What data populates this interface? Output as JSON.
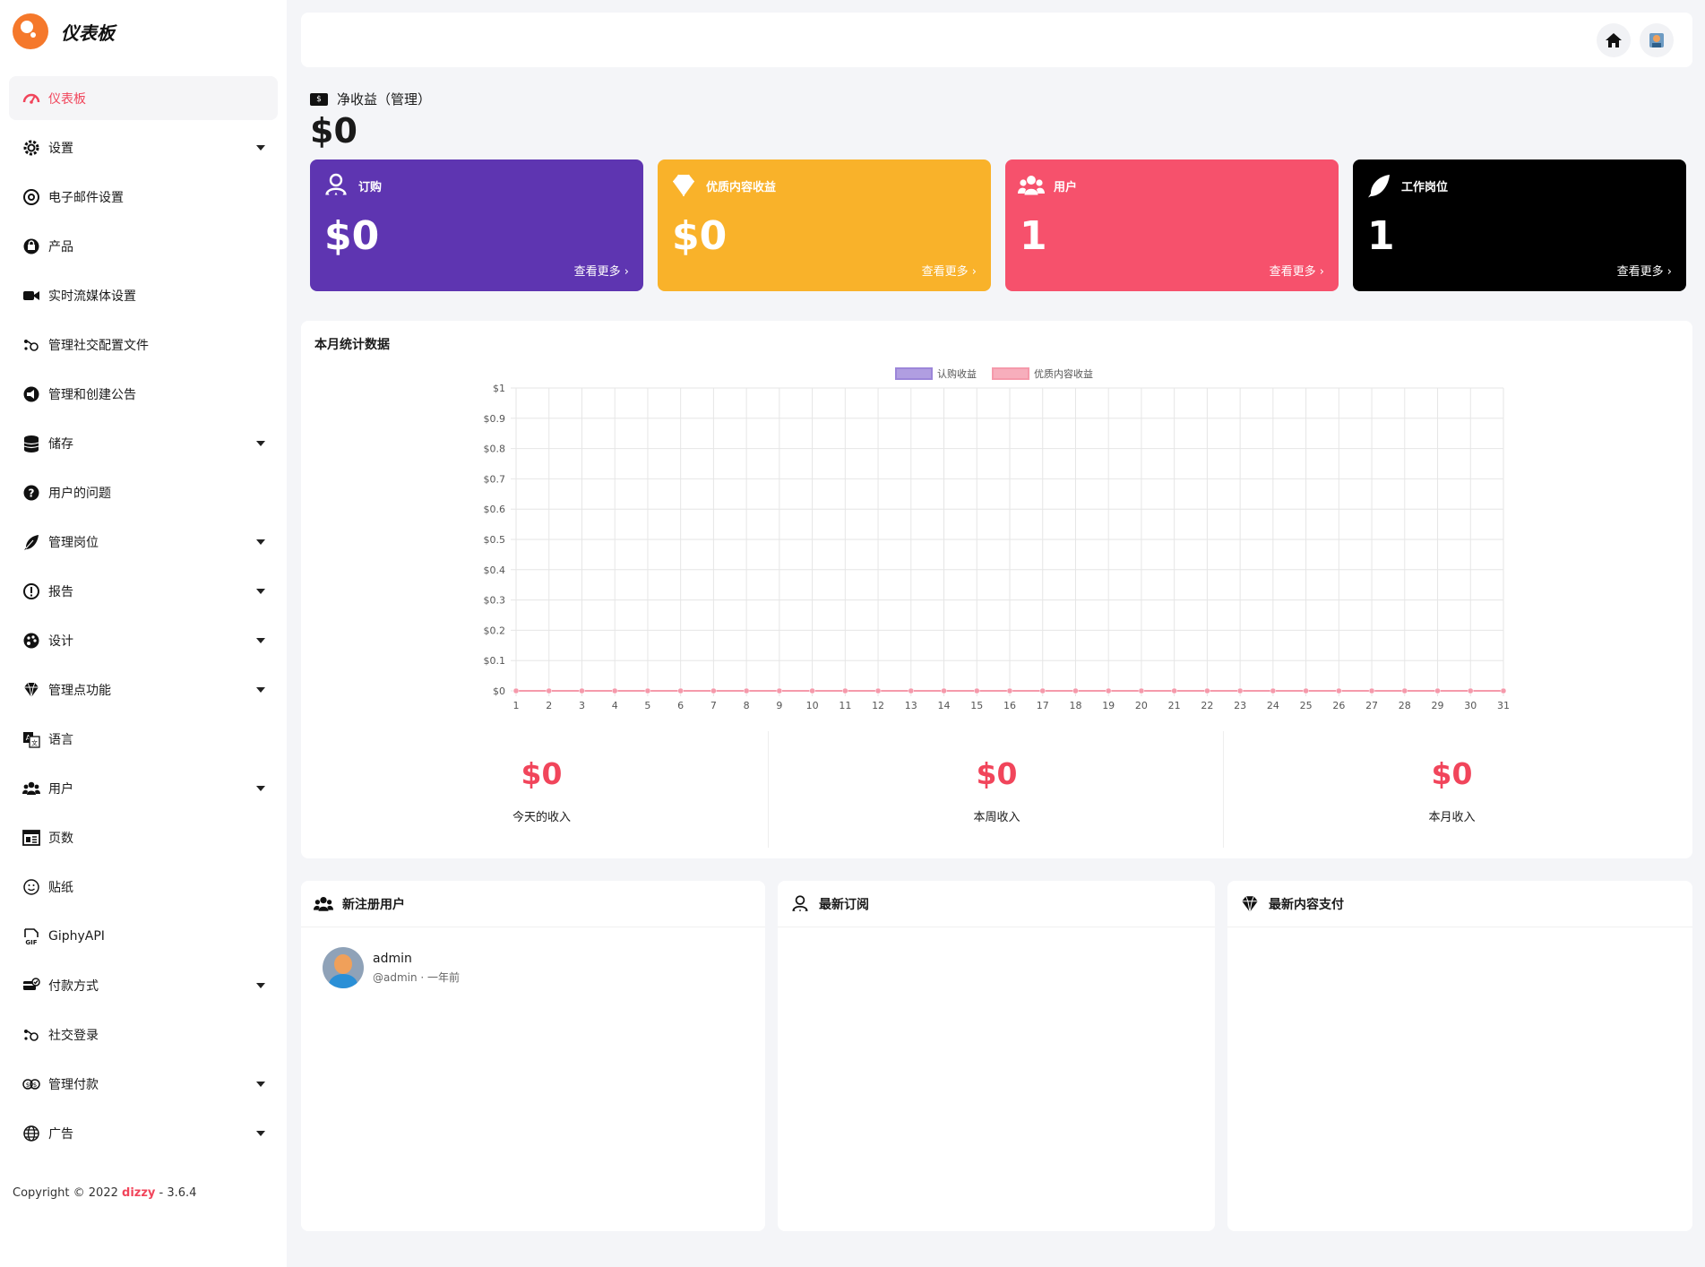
{
  "brand": {
    "title": "仪表板"
  },
  "sidebar": {
    "items": [
      {
        "label": "仪表板",
        "icon": "dashboard-icon",
        "active": true,
        "caret": false
      },
      {
        "label": "设置",
        "icon": "gear-icon",
        "caret": true
      },
      {
        "label": "电子邮件设置",
        "icon": "at-icon",
        "caret": false
      },
      {
        "label": "产品",
        "icon": "products-icon",
        "caret": false
      },
      {
        "label": "实时流媒体设置",
        "icon": "video-icon",
        "caret": false
      },
      {
        "label": "管理社交配置文件",
        "icon": "share-icon",
        "caret": false
      },
      {
        "label": "管理和创建公告",
        "icon": "megaphone-icon",
        "caret": false
      },
      {
        "label": "储存",
        "icon": "database-icon",
        "caret": true
      },
      {
        "label": "用户的问题",
        "icon": "question-icon",
        "caret": false
      },
      {
        "label": "管理岗位",
        "icon": "feather-icon",
        "caret": true
      },
      {
        "label": "报告",
        "icon": "alert-icon",
        "caret": true
      },
      {
        "label": "设计",
        "icon": "palette-icon",
        "caret": true
      },
      {
        "label": "管理点功能",
        "icon": "diamond-icon",
        "caret": true
      },
      {
        "label": "语言",
        "icon": "translate-icon",
        "caret": false
      },
      {
        "label": "用户",
        "icon": "users-icon",
        "caret": true
      },
      {
        "label": "页数",
        "icon": "pages-icon",
        "caret": false
      },
      {
        "label": "贴纸",
        "icon": "sticker-icon",
        "caret": false
      },
      {
        "label": "GiphyAPI",
        "icon": "gif-icon",
        "caret": false
      },
      {
        "label": "付款方式",
        "icon": "payment-icon",
        "caret": true
      },
      {
        "label": "社交登录",
        "icon": "social-login-icon",
        "caret": false
      },
      {
        "label": "管理付款",
        "icon": "money-icon",
        "caret": true
      },
      {
        "label": "广告",
        "icon": "globe-icon",
        "caret": true
      }
    ]
  },
  "footer": {
    "copyright": "Copyright © 2022",
    "brand": "dizzy",
    "version": "- 3.6.4"
  },
  "net": {
    "label": "净收益（管理）",
    "value": "$0"
  },
  "cards": [
    {
      "label": "订购",
      "value": "$0",
      "more": "查看更多 ›",
      "color": "#5e35b1",
      "icon": "subscription-icon"
    },
    {
      "label": "优质内容收益",
      "value": "$0",
      "more": "查看更多 ›",
      "color": "#f9b22a",
      "icon": "diamond-icon"
    },
    {
      "label": "用户",
      "value": "1",
      "more": "查看更多 ›",
      "color": "#f6516c",
      "icon": "users-icon"
    },
    {
      "label": "工作岗位",
      "value": "1",
      "more": "查看更多 ›",
      "color": "#000000",
      "icon": "feather-icon"
    }
  ],
  "stats": {
    "title": "本月统计数据",
    "summary": [
      {
        "value": "$0",
        "label": "今天的收入"
      },
      {
        "value": "$0",
        "label": "本周收入"
      },
      {
        "value": "$0",
        "label": "本月收入"
      }
    ]
  },
  "chart_data": {
    "type": "line",
    "x": [
      1,
      2,
      3,
      4,
      5,
      6,
      7,
      8,
      9,
      10,
      11,
      12,
      13,
      14,
      15,
      16,
      17,
      18,
      19,
      20,
      21,
      22,
      23,
      24,
      25,
      26,
      27,
      28,
      29,
      30,
      31
    ],
    "series": [
      {
        "name": "认购收益",
        "color": "#9c86d9",
        "values": [
          0,
          0,
          0,
          0,
          0,
          0,
          0,
          0,
          0,
          0,
          0,
          0,
          0,
          0,
          0,
          0,
          0,
          0,
          0,
          0,
          0,
          0,
          0,
          0,
          0,
          0,
          0,
          0,
          0,
          0,
          0
        ]
      },
      {
        "name": "优质内容收益",
        "color": "#f59aab",
        "values": [
          0,
          0,
          0,
          0,
          0,
          0,
          0,
          0,
          0,
          0,
          0,
          0,
          0,
          0,
          0,
          0,
          0,
          0,
          0,
          0,
          0,
          0,
          0,
          0,
          0,
          0,
          0,
          0,
          0,
          0,
          0
        ]
      }
    ],
    "yticks": [
      "$0",
      "$0.1",
      "$0.2",
      "$0.3",
      "$0.4",
      "$0.5",
      "$0.6",
      "$0.7",
      "$0.8",
      "$0.9",
      "$1"
    ],
    "ylim": [
      0,
      1
    ],
    "grid": true,
    "legend": "top-center"
  },
  "panels": [
    {
      "title": "新注册用户",
      "icon": "users-icon"
    },
    {
      "title": "最新订阅",
      "icon": "subscription-icon"
    },
    {
      "title": "最新内容支付",
      "icon": "diamond-icon"
    }
  ],
  "new_users": [
    {
      "name": "admin",
      "meta": "@admin · 一年前"
    }
  ]
}
